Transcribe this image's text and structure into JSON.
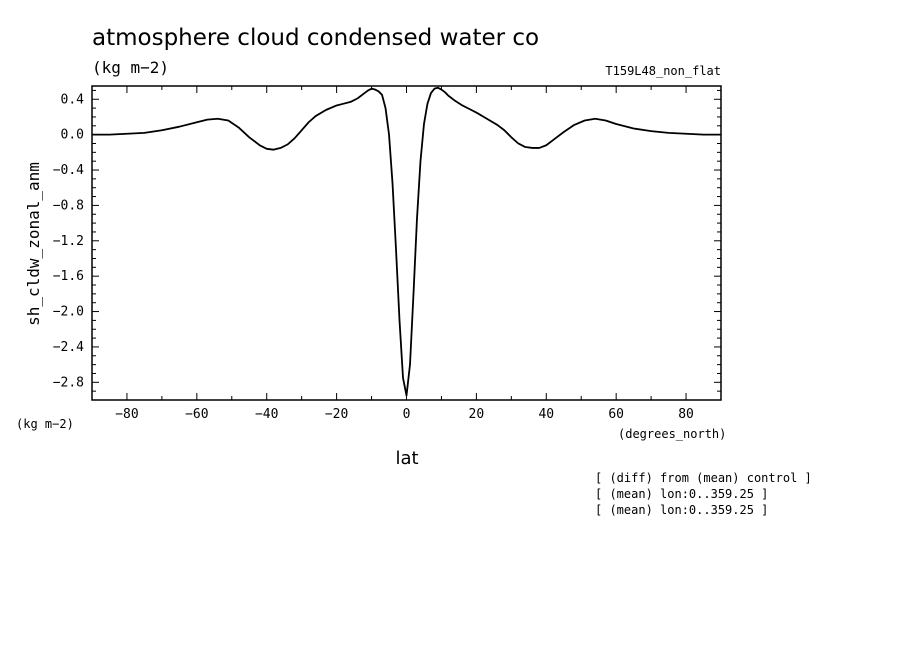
{
  "chart_data": {
    "type": "line",
    "title": "atmosphere cloud condensed water co",
    "units_label": "(kg m−2)",
    "experiment": "T159L48_non_flat",
    "xlabel": "lat",
    "xunits": "(degrees_north)",
    "ylabel": "sh_cldw_zonal_anm",
    "yunits": "(kg m−2)",
    "xlim": [
      -90,
      90
    ],
    "ylim": [
      -3.0,
      0.55
    ],
    "xticks": [
      -80,
      -60,
      -40,
      -20,
      0,
      20,
      40,
      60,
      80
    ],
    "xtick_labels": [
      "−80",
      "−60",
      "−40",
      "−20",
      "0",
      "20",
      "40",
      "60",
      "80"
    ],
    "yticks": [
      0.4,
      0.0,
      -0.4,
      -0.8,
      -1.2,
      -1.6,
      -2.0,
      -2.4,
      -2.8
    ],
    "ytick_labels": [
      "0.4",
      "0.0",
      "−0.4",
      "−0.8",
      "−1.2",
      "−1.6",
      "−2.0",
      "−2.4",
      "−2.8"
    ],
    "grid": false,
    "legend": "none",
    "line_color": "#000000",
    "notes": [
      "[ (diff) from (mean) control ]",
      "[ (mean) lon:0..359.25 ]",
      "[ (mean) lon:0..359.25 ]"
    ],
    "series": [
      {
        "x": [
          -90,
          -85,
          -80,
          -75,
          -70,
          -65,
          -60,
          -57,
          -54,
          -51,
          -48,
          -45,
          -42,
          -40,
          -38,
          -36,
          -34,
          -32,
          -30,
          -28,
          -26,
          -23,
          -20,
          -18,
          -16,
          -14,
          -12,
          -11,
          -10,
          -9,
          -8,
          -7,
          -6,
          -5,
          -4,
          -3,
          -2,
          -1,
          0,
          1,
          2,
          3,
          4,
          5,
          6,
          7,
          8,
          9,
          10,
          11,
          12,
          14,
          16,
          18,
          20,
          23,
          26,
          28,
          30,
          32,
          34,
          36,
          38,
          40,
          42,
          45,
          48,
          51,
          54,
          57,
          60,
          65,
          70,
          75,
          80,
          85,
          90
        ],
        "y": [
          0.0,
          0.0,
          0.01,
          0.02,
          0.05,
          0.09,
          0.14,
          0.17,
          0.18,
          0.16,
          0.08,
          -0.03,
          -0.12,
          -0.16,
          -0.17,
          -0.15,
          -0.11,
          -0.04,
          0.05,
          0.14,
          0.21,
          0.28,
          0.33,
          0.35,
          0.37,
          0.41,
          0.47,
          0.5,
          0.52,
          0.51,
          0.49,
          0.45,
          0.3,
          0.0,
          -0.55,
          -1.3,
          -2.1,
          -2.75,
          -2.95,
          -2.6,
          -1.8,
          -0.95,
          -0.3,
          0.12,
          0.35,
          0.47,
          0.52,
          0.53,
          0.51,
          0.48,
          0.44,
          0.38,
          0.33,
          0.29,
          0.25,
          0.18,
          0.11,
          0.05,
          -0.03,
          -0.1,
          -0.14,
          -0.15,
          -0.15,
          -0.12,
          -0.06,
          0.03,
          0.11,
          0.16,
          0.18,
          0.16,
          0.12,
          0.07,
          0.04,
          0.02,
          0.01,
          0.0,
          0.0
        ]
      }
    ]
  }
}
